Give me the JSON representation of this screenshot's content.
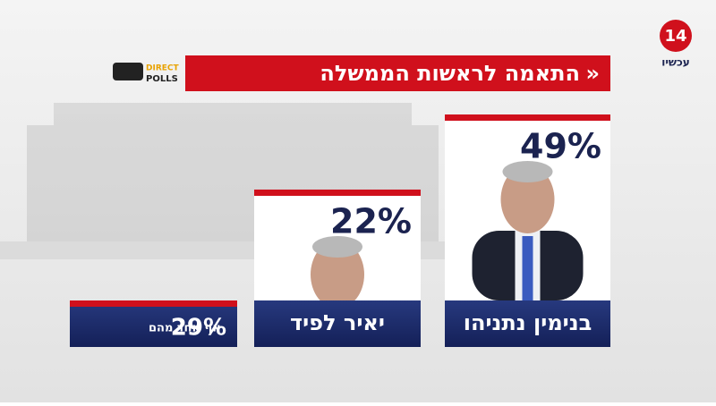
{
  "chart_data": {
    "type": "bar",
    "title": "התאמה לראשות הממשלה",
    "brand": "14",
    "brand_name": "עכשיו",
    "source_top": "DIRECT",
    "source_bottom": "POLLS",
    "categories": [
      "בנימין נתניהו",
      "יאיר לפיד",
      "אף אחד מהם"
    ],
    "values": [
      49,
      22,
      29
    ],
    "value_labels": [
      "49%",
      "22%",
      "29%"
    ],
    "color": "#d0101c"
  }
}
